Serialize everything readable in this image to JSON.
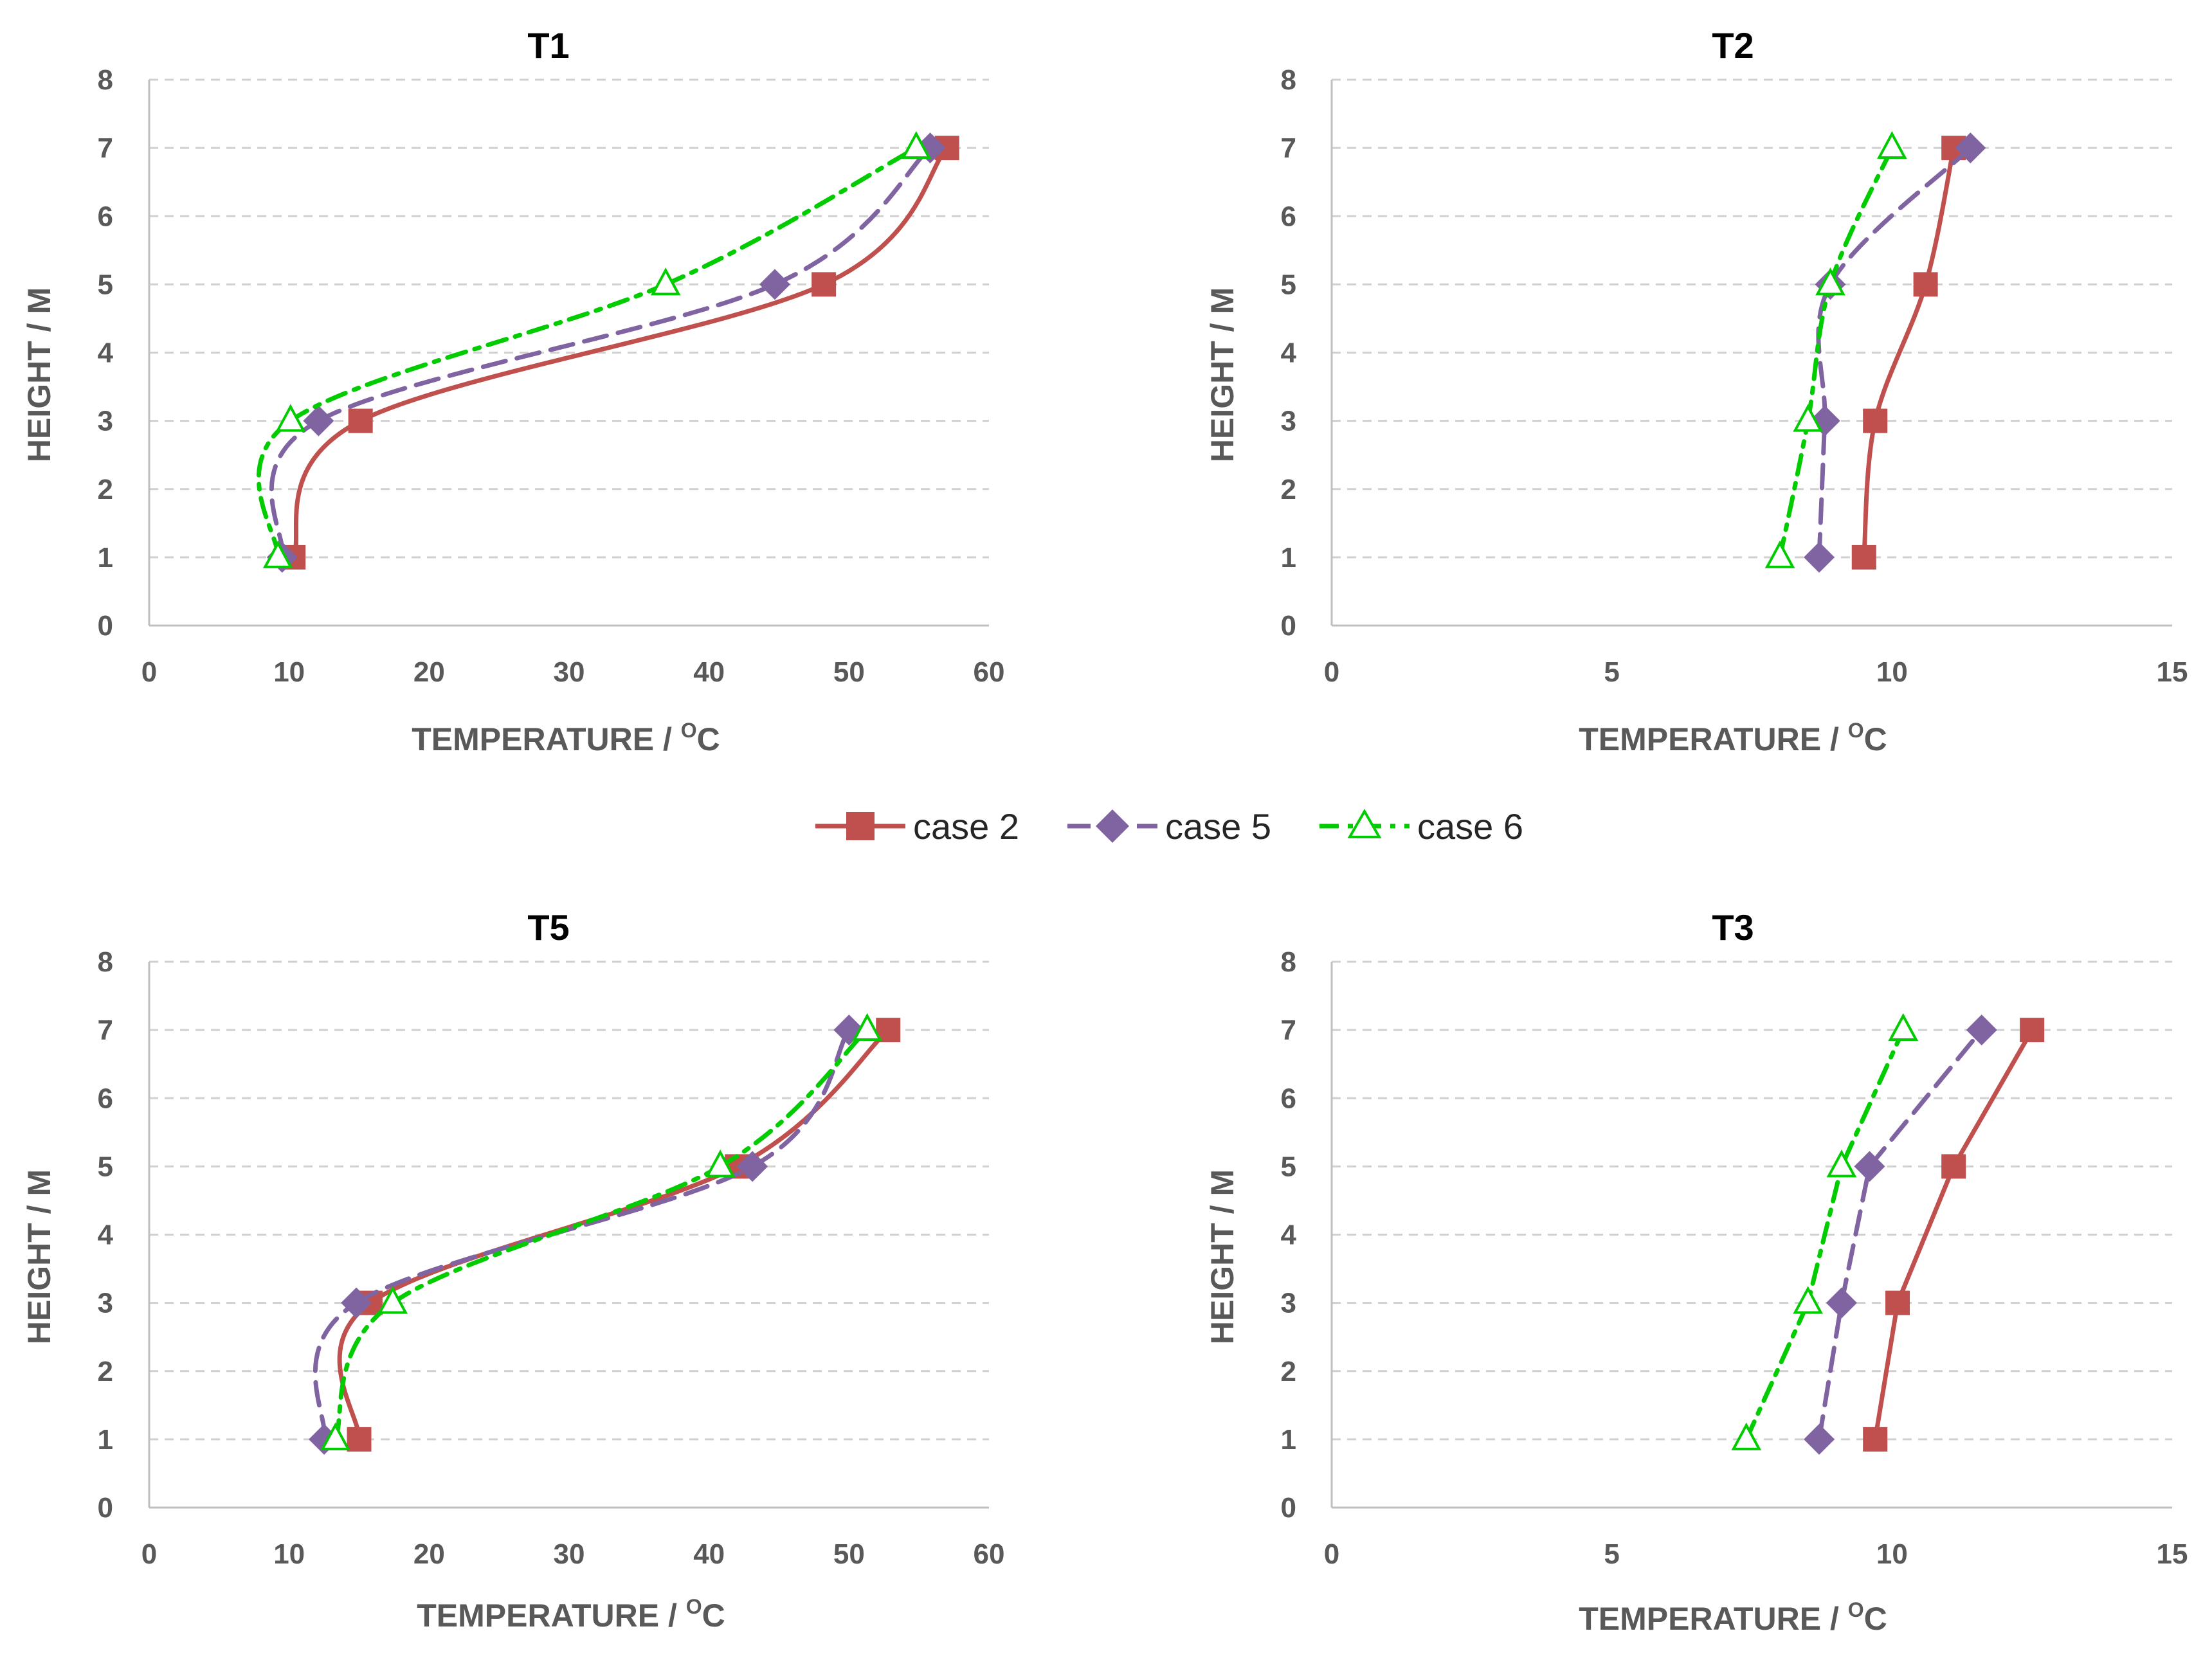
{
  "legend": {
    "entries": [
      {
        "name": "case 2",
        "color": "#C0504D",
        "marker": "square",
        "dash": "solid"
      },
      {
        "name": "case 5",
        "color": "#8064A2",
        "marker": "diamond",
        "dash": "dashed"
      },
      {
        "name": "case 6",
        "color": "#00CC00",
        "marker": "triangle-open",
        "dash": "dashdot"
      }
    ]
  },
  "chart_data": [
    {
      "id": "t1",
      "type": "line",
      "title": "T1",
      "xlabel": "TEMPERATURE / ",
      "xlabel_sup": "O",
      "xlabel_unit": "C",
      "ylabel": "HEIGHT / M",
      "xlim": [
        0,
        60
      ],
      "ylim": [
        0,
        8
      ],
      "xticks": [
        "0",
        "10",
        "20",
        "30",
        "40",
        "50",
        "60"
      ],
      "yticks": [
        "0",
        "1",
        "2",
        "3",
        "4",
        "5",
        "6",
        "7",
        "8"
      ],
      "grid": true,
      "smooth": true,
      "series": [
        {
          "name": "case 2",
          "x": [
            10.3,
            15.1,
            48.2,
            57.0
          ],
          "y": [
            1,
            3,
            5,
            7
          ]
        },
        {
          "name": "case 5",
          "x": [
            9.5,
            12.1,
            44.7,
            55.8
          ],
          "y": [
            1,
            3,
            5,
            7
          ]
        },
        {
          "name": "case 6",
          "x": [
            9.2,
            10.1,
            36.9,
            54.8
          ],
          "y": [
            1,
            3,
            5,
            7
          ]
        }
      ]
    },
    {
      "id": "t2",
      "type": "line",
      "title": "T2",
      "xlabel": "TEMPERATURE / ",
      "xlabel_sup": "O",
      "xlabel_unit": "C",
      "ylabel": "HEIGHT / M",
      "xlim": [
        0,
        15
      ],
      "ylim": [
        0,
        8
      ],
      "xticks": [
        "0",
        "5",
        "10",
        "15"
      ],
      "yticks": [
        "0",
        "1",
        "2",
        "3",
        "4",
        "5",
        "6",
        "7",
        "8"
      ],
      "grid": true,
      "smooth": true,
      "series": [
        {
          "name": "case 2",
          "x": [
            9.5,
            9.7,
            10.6,
            11.1
          ],
          "y": [
            1,
            3,
            5,
            7
          ]
        },
        {
          "name": "case 5",
          "x": [
            8.7,
            8.8,
            8.9,
            11.4
          ],
          "y": [
            1,
            3,
            5,
            7
          ]
        },
        {
          "name": "case 6",
          "x": [
            8.0,
            8.5,
            8.9,
            10.0
          ],
          "y": [
            1,
            3,
            5,
            7
          ]
        }
      ]
    },
    {
      "id": "t5",
      "type": "line",
      "title": "T5",
      "xlabel": "TEMPERATURE / ",
      "xlabel_sup": "O",
      "xlabel_unit": "C",
      "ylabel": "HEIGHT / M",
      "xlim": [
        0,
        60
      ],
      "ylim": [
        0,
        8
      ],
      "xticks": [
        "0",
        "10",
        "20",
        "30",
        "40",
        "50",
        "60"
      ],
      "yticks": [
        "0",
        "1",
        "2",
        "3",
        "4",
        "5",
        "6",
        "7",
        "8"
      ],
      "grid": true,
      "smooth": true,
      "series": [
        {
          "name": "case 2",
          "x": [
            15.0,
            15.8,
            42.0,
            52.8
          ],
          "y": [
            1,
            3,
            5,
            7
          ]
        },
        {
          "name": "case 5",
          "x": [
            12.5,
            14.8,
            43.1,
            50.0
          ],
          "y": [
            1,
            3,
            5,
            7
          ]
        },
        {
          "name": "case 6",
          "x": [
            13.3,
            17.4,
            40.8,
            51.3
          ],
          "y": [
            1,
            3,
            5,
            7
          ]
        }
      ]
    },
    {
      "id": "t3",
      "type": "line",
      "title": "T3",
      "xlabel": "TEMPERATURE / ",
      "xlabel_sup": "O",
      "xlabel_unit": "C",
      "ylabel": "HEIGHT / M",
      "xlim": [
        0,
        15
      ],
      "ylim": [
        0,
        8
      ],
      "xticks": [
        "0",
        "5",
        "10",
        "15"
      ],
      "yticks": [
        "0",
        "1",
        "2",
        "3",
        "4",
        "5",
        "6",
        "7",
        "8"
      ],
      "grid": true,
      "smooth": false,
      "series": [
        {
          "name": "case 2",
          "x": [
            9.7,
            10.1,
            11.1,
            12.5
          ],
          "y": [
            1,
            3,
            5,
            7
          ]
        },
        {
          "name": "case 5",
          "x": [
            8.7,
            9.1,
            9.6,
            11.6
          ],
          "y": [
            1,
            3,
            5,
            7
          ]
        },
        {
          "name": "case 6",
          "x": [
            7.4,
            8.5,
            9.1,
            10.2
          ],
          "y": [
            1,
            3,
            5,
            7
          ]
        }
      ]
    }
  ]
}
